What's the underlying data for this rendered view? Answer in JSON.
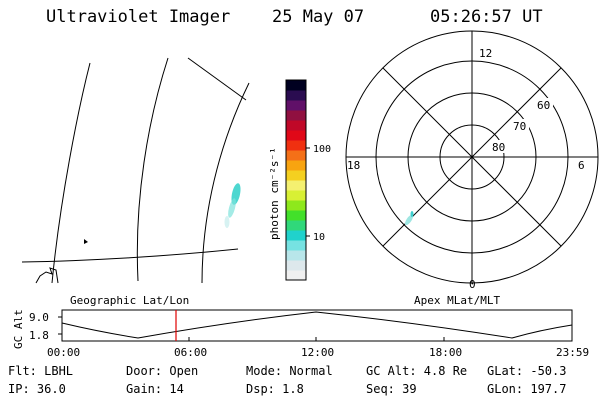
{
  "header": {
    "instrument": "Ultraviolet Imager",
    "date": "25 May 07",
    "time": "05:26:57 UT"
  },
  "color_bar": {
    "unit_label": "photon cm⁻²s⁻¹",
    "ticks": [
      "100",
      "10"
    ],
    "colors": [
      "#f0f0f0",
      "#dde8ec",
      "#b8e6ea",
      "#76e2e2",
      "#20d2cc",
      "#30d87a",
      "#42e02a",
      "#8ee81c",
      "#d8f034",
      "#f4f070",
      "#f4d020",
      "#f8a410",
      "#f47018",
      "#f03010",
      "#e00818",
      "#c00828",
      "#901040",
      "#601068",
      "#2a0c50",
      "#000020"
    ]
  },
  "map_left": {
    "label": "Geographic Lat/Lon"
  },
  "polar": {
    "label": "Apex MLat/MLT",
    "mlt_labels": [
      "12",
      "18",
      "6",
      "0"
    ],
    "mlat_labels": [
      "60",
      "70",
      "80"
    ]
  },
  "timeline": {
    "axis_label": "GC Alt",
    "y_ticks": [
      "9.0",
      "1.8"
    ],
    "x_ticks": [
      "00:00",
      "06:00",
      "12:00",
      "18:00",
      "23:59"
    ],
    "marker_color": "#e00000"
  },
  "info": {
    "flt": "Flt: LBHL",
    "ip": "IP: 36.0",
    "door": "Door: Open",
    "gain": "Gain: 14",
    "mode": "Mode: Normal",
    "dsp": "Dsp:   1.8",
    "gcalt": "GC Alt: 4.8 Re",
    "seq": "Seq: 39",
    "glat": "GLat: -50.3",
    "glon": "GLon: 197.7"
  }
}
